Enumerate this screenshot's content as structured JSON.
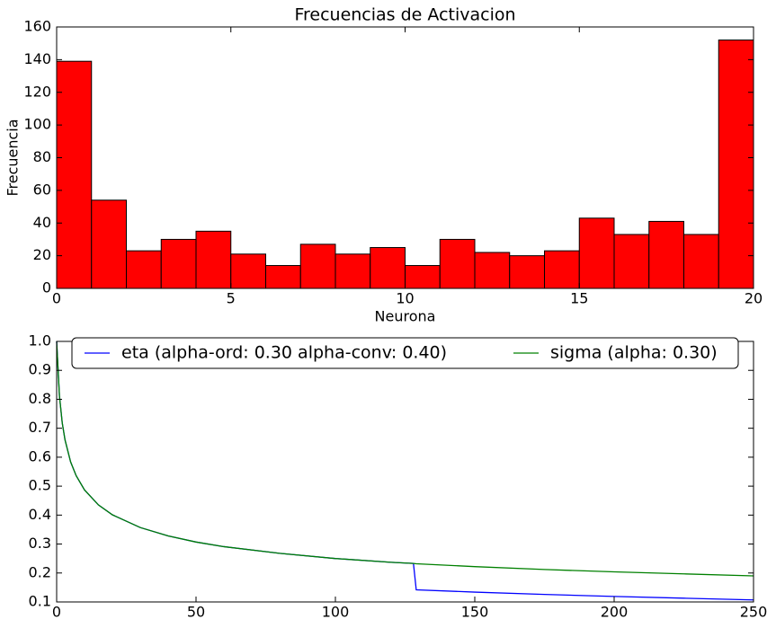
{
  "chart_data": [
    {
      "type": "histogram",
      "title": "Frecuencias de Activacion",
      "x_label": "Neurona",
      "y_label": "Frecuencia",
      "bins": [
        0,
        1,
        2,
        3,
        4,
        5,
        6,
        7,
        8,
        9,
        10,
        11,
        12,
        13,
        14,
        15,
        16,
        17,
        18,
        19,
        20
      ],
      "values": [
        139,
        54,
        23,
        30,
        35,
        21,
        14,
        27,
        21,
        25,
        14,
        30,
        22,
        20,
        23,
        43,
        33,
        41,
        33,
        152
      ],
      "color": "#ff0000",
      "xlim": [
        0,
        20
      ],
      "xticks": [
        0,
        5,
        10,
        15,
        20
      ],
      "ylim": [
        0,
        160
      ],
      "yticks": [
        0,
        20,
        40,
        60,
        80,
        100,
        120,
        140,
        160
      ]
    },
    {
      "type": "line",
      "x": [
        0,
        1,
        2,
        3,
        5,
        7,
        10,
        15,
        20,
        30,
        40,
        50,
        60,
        80,
        100,
        120,
        128,
        129,
        150,
        175,
        200,
        225,
        250
      ],
      "series": [
        {
          "name": "eta (alpha-ord: 0.30 alpha-conv: 0.40)",
          "color": "#0000ff",
          "values": [
            1,
            0.812,
            0.719,
            0.66,
            0.584,
            0.536,
            0.487,
            0.435,
            0.401,
            0.357,
            0.328,
            0.307,
            0.291,
            0.268,
            0.25,
            0.237,
            0.233,
            0.142,
            0.134,
            0.126,
            0.119,
            0.113,
            0.107
          ]
        },
        {
          "name": "sigma (alpha: 0.30)",
          "color": "#008000",
          "values": [
            1,
            0.812,
            0.719,
            0.66,
            0.584,
            0.536,
            0.487,
            0.435,
            0.401,
            0.357,
            0.328,
            0.307,
            0.291,
            0.268,
            0.25,
            0.237,
            0.233,
            0.232,
            0.222,
            0.212,
            0.204,
            0.197,
            0.19
          ]
        }
      ],
      "legend": "upper center",
      "xlim": [
        0,
        250
      ],
      "xticks": [
        0,
        50,
        100,
        150,
        200,
        250
      ],
      "ylim": [
        0.1,
        1.0
      ],
      "yticks": [
        0.1,
        0.2,
        0.3,
        0.4,
        0.5,
        0.6,
        0.7,
        0.8,
        0.9,
        {
          "value": 1,
          "label": "1.0"
        }
      ]
    }
  ]
}
